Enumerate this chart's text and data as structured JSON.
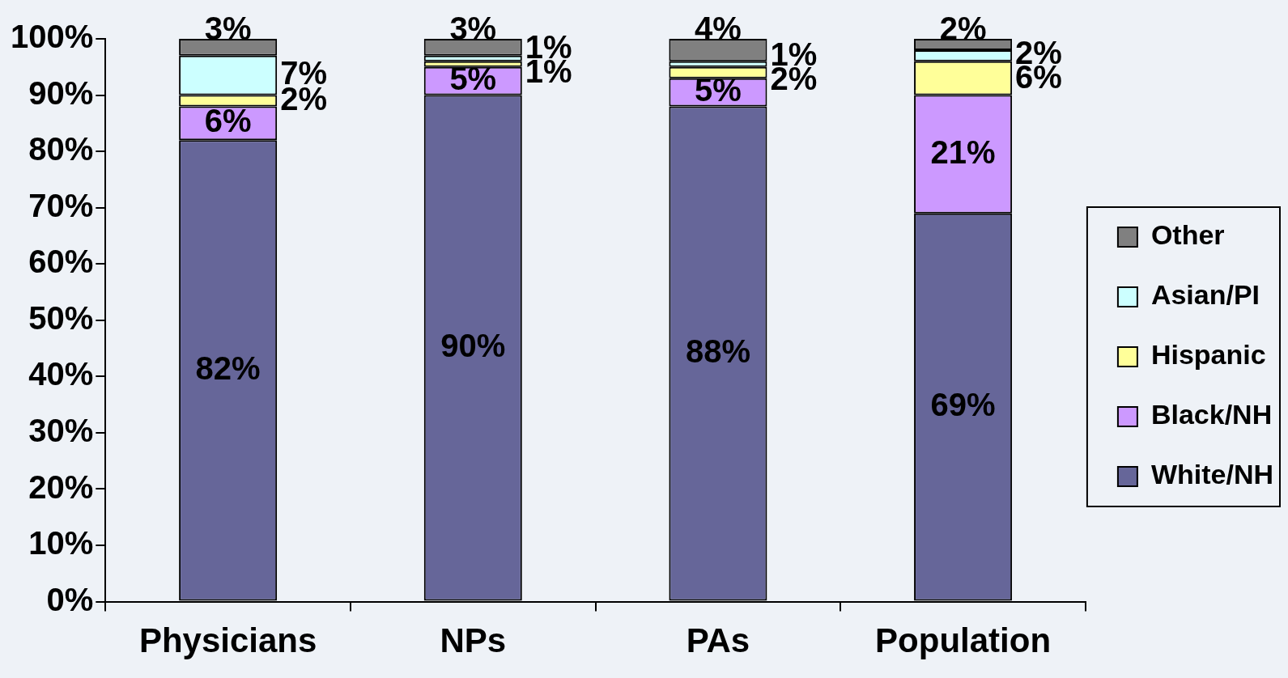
{
  "chart_data": {
    "type": "bar",
    "stacked": true,
    "categories": [
      "Physicians",
      "NPs",
      "PAs",
      "Population"
    ],
    "series": [
      {
        "name": "White/NH",
        "color": "#666699",
        "values": [
          82,
          90,
          88,
          69
        ],
        "value_labels": [
          "82%",
          "90%",
          "88%",
          "69%"
        ]
      },
      {
        "name": "Black/NH",
        "color": "#cc99ff",
        "values": [
          6,
          5,
          5,
          21
        ],
        "value_labels": [
          "6%",
          "5%",
          "5%",
          "21%"
        ]
      },
      {
        "name": "Hispanic",
        "color": "#ffff99",
        "values": [
          2,
          1,
          2,
          6
        ],
        "value_labels": [
          "2%",
          "1%",
          "2%",
          "6%"
        ]
      },
      {
        "name": "Asian/PI",
        "color": "#ccffff",
        "values": [
          7,
          1,
          1,
          2
        ],
        "value_labels": [
          "7%",
          "1%",
          "1%",
          "2%"
        ]
      },
      {
        "name": "Other",
        "color": "#808080",
        "values": [
          3,
          3,
          4,
          2
        ],
        "value_labels": [
          "3%",
          "3%",
          "4%",
          "2%"
        ]
      }
    ],
    "ylim": [
      0,
      100
    ],
    "yticks": [
      {
        "value": 0,
        "label": "0%"
      },
      {
        "value": 10,
        "label": "10%"
      },
      {
        "value": 20,
        "label": "20%"
      },
      {
        "value": 30,
        "label": "30%"
      },
      {
        "value": 40,
        "label": "40%"
      },
      {
        "value": 50,
        "label": "50%"
      },
      {
        "value": 60,
        "label": "60%"
      },
      {
        "value": 70,
        "label": "70%"
      },
      {
        "value": 80,
        "label": "80%"
      },
      {
        "value": 90,
        "label": "90%"
      },
      {
        "value": 100,
        "label": "100%"
      }
    ],
    "legend": "right",
    "grid": false
  }
}
